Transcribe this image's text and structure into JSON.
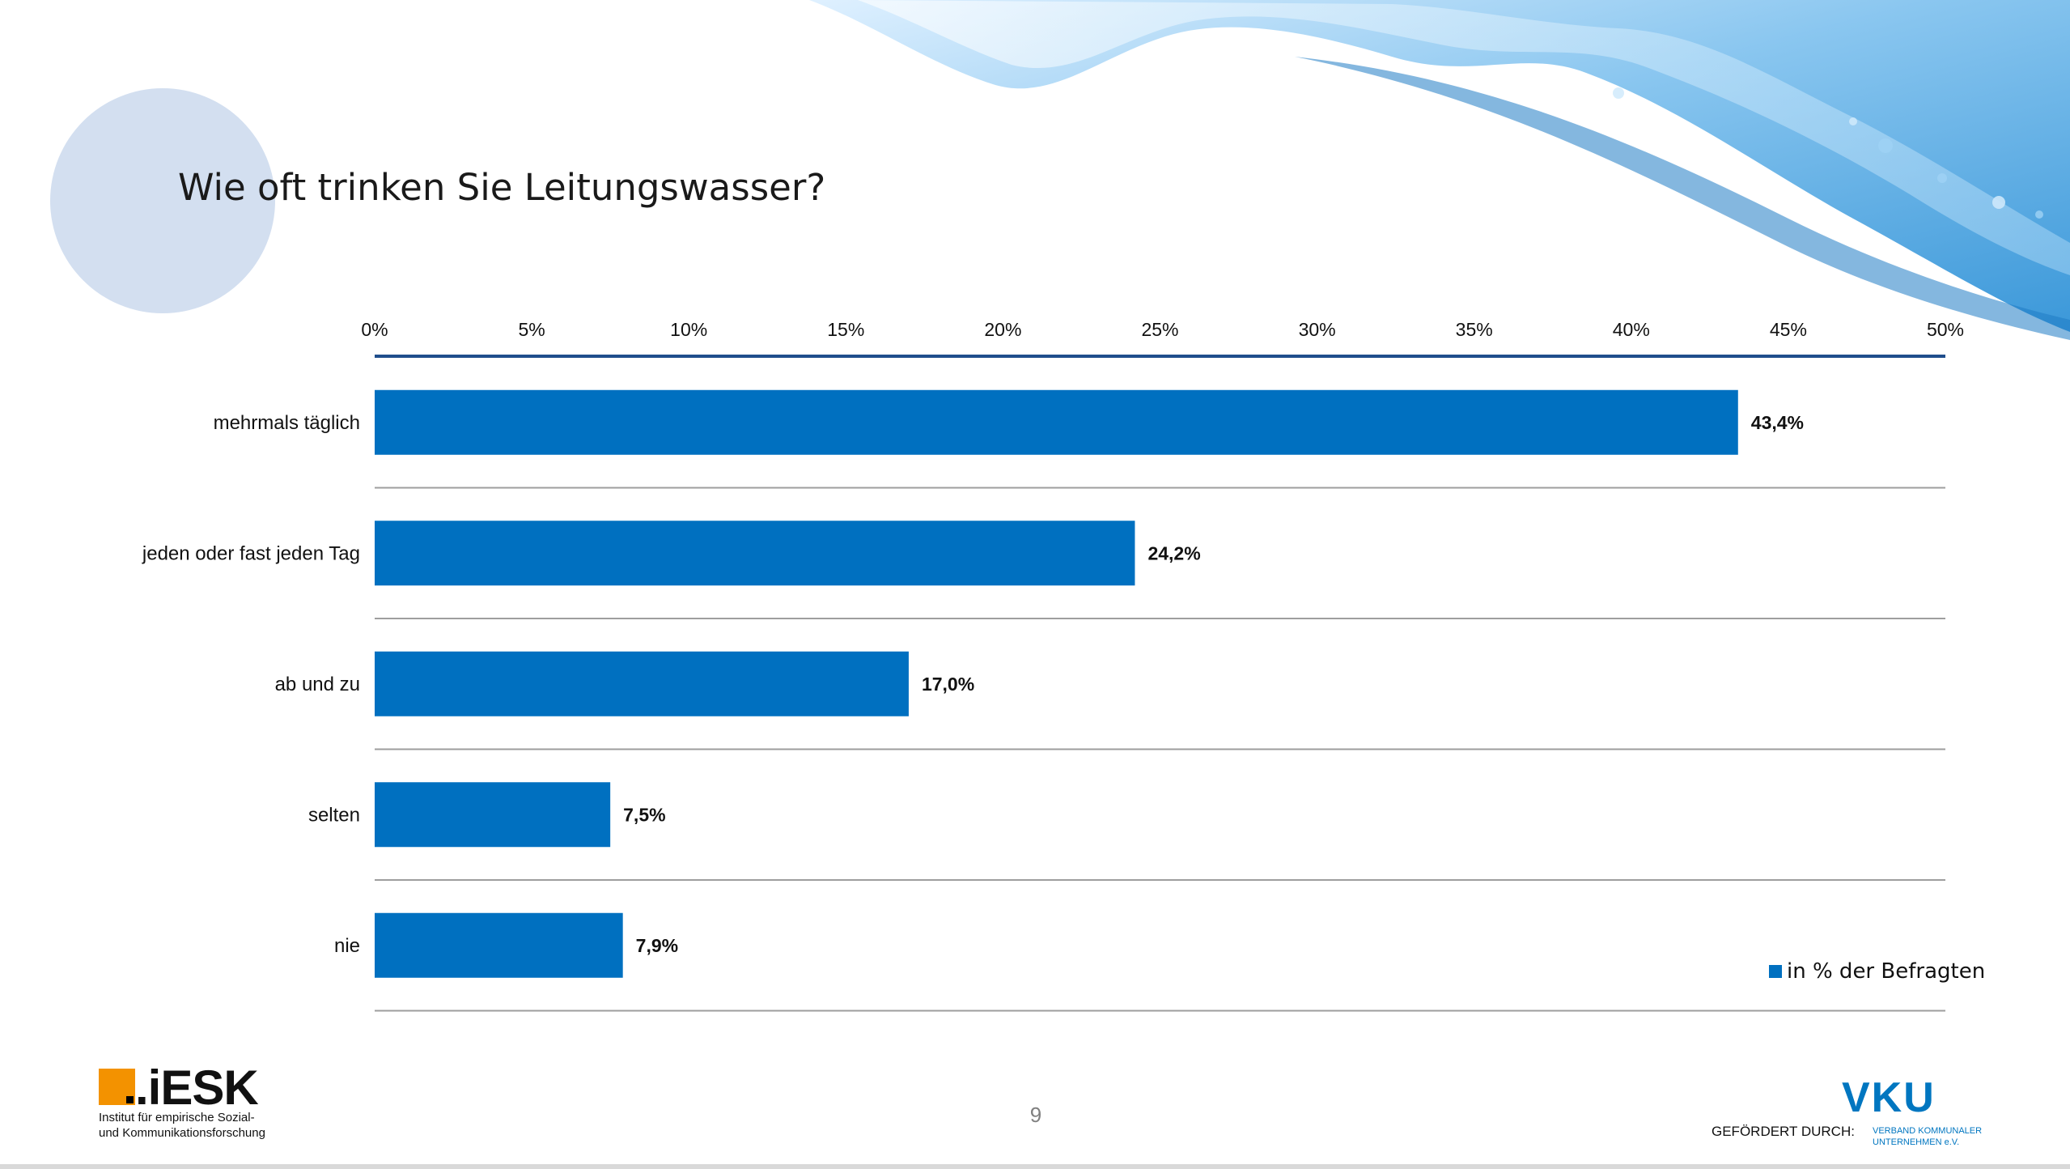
{
  "slide": {
    "title": "Wie oft trinken Sie Leitungswasser?",
    "page_number": "9",
    "funded_by": "GEFÖRDERT DURCH:",
    "bar_color": "#0070c0",
    "circle_color": "#d3dff0"
  },
  "logos": {
    "iesk": {
      "name": ".iESK",
      "line1": "Institut für empirische Sozial-",
      "line2": "und Kommunikationsforschung",
      "accent": "#f39200"
    },
    "vku": {
      "name": "VKU",
      "line1": "VERBAND KOMMUNALER",
      "line2": "UNTERNEHMEN e.V.",
      "color": "#0076c0"
    }
  },
  "chart_data": {
    "type": "bar",
    "orientation": "horizontal",
    "categories": [
      "mehrmals täglich",
      "jeden oder fast jeden Tag",
      "ab und zu",
      "selten",
      "nie"
    ],
    "values": [
      43.4,
      24.2,
      17.0,
      7.5,
      7.9
    ],
    "value_labels": [
      "43,4%",
      "24,2%",
      "17,0%",
      "7,5%",
      "7,9%"
    ],
    "xlim": [
      0,
      50
    ],
    "x_ticks": [
      0,
      5,
      10,
      15,
      20,
      25,
      30,
      35,
      40,
      45,
      50
    ],
    "x_tick_labels": [
      "0%",
      "5%",
      "10%",
      "15%",
      "20%",
      "25%",
      "30%",
      "35%",
      "40%",
      "45%",
      "50%"
    ],
    "x_axis_position": "top",
    "legend": {
      "label": "in % der Befragten",
      "position": "bottom-right"
    },
    "grid": "horizontal separators between categories"
  }
}
